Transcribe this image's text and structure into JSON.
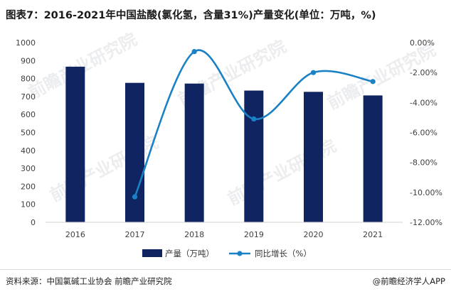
{
  "title": "图表7：2016-2021年中国盐酸(氯化氢，含量31%)产量变化(单位：万吨，%)",
  "source": "资料来源：中国氯碱工业协会 前瞻产业研究院",
  "brand": "@前瞻经济学人APP",
  "watermark": "前瞻产业研究院",
  "colors": {
    "bar": "#0f2460",
    "line": "#1a82c4",
    "axis_text": "#404040",
    "baseline": "#d0d0d0"
  },
  "chart_data": {
    "type": "bar+line",
    "categories": [
      "2016",
      "2017",
      "2018",
      "2019",
      "2020",
      "2021"
    ],
    "series": [
      {
        "name": "产量（万吨）",
        "type": "bar",
        "axis": "left",
        "values": [
          866,
          776,
          772,
          733,
          726,
          706
        ]
      },
      {
        "name": "同比增长（%）",
        "type": "line",
        "axis": "right",
        "smooth": true,
        "values": [
          null,
          -10.3,
          -0.6,
          -5.1,
          -2.0,
          -2.6
        ]
      }
    ],
    "y_left": {
      "ylim": [
        0,
        1000
      ],
      "ticks": [
        "0",
        "100",
        "200",
        "300",
        "400",
        "500",
        "600",
        "700",
        "800",
        "900",
        "1000"
      ]
    },
    "y_right": {
      "ylim": [
        -12,
        0
      ],
      "ticks": [
        "0.00%",
        "-2.00%",
        "-4.00%",
        "-6.00%",
        "-8.00%",
        "-10.00%",
        "-12.00%"
      ]
    },
    "legend_position": "bottom-center"
  }
}
